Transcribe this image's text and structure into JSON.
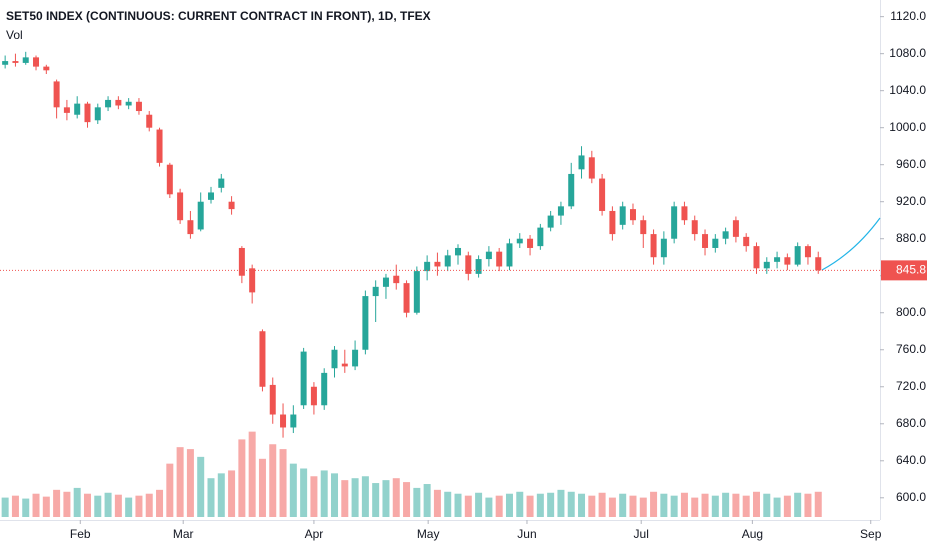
{
  "chart_data": {
    "type": "candlestick",
    "title": "SET50 INDEX (CONTINUOUS: CURRENT CONTRACT IN FRONT), 1D, TFEX",
    "volume_label": "Vol",
    "x": [
      0,
      1,
      2,
      3,
      4,
      5,
      6,
      7,
      8,
      9,
      10,
      11,
      12,
      13,
      14,
      15,
      16,
      17,
      18,
      19,
      20,
      21,
      22,
      23,
      24,
      25,
      26,
      27,
      28,
      29,
      30,
      31,
      32,
      33,
      34,
      35,
      36,
      37,
      38,
      39,
      40,
      41,
      42,
      43,
      44,
      45,
      46,
      47,
      48,
      49,
      50,
      51,
      52,
      53,
      54,
      55,
      56,
      57,
      58,
      59,
      60,
      61,
      62,
      63,
      64,
      65,
      66,
      67,
      68,
      69,
      70,
      71,
      72,
      73,
      74,
      75,
      76,
      77,
      78,
      79
    ],
    "candles": {
      "open": [
        1068,
        1072,
        1070,
        1076,
        1066,
        1050,
        1022,
        1014,
        1026,
        1008,
        1022,
        1030,
        1024,
        1028,
        1014,
        998,
        960,
        930,
        900,
        890,
        922,
        935,
        920,
        870,
        848,
        780,
        722,
        690,
        676,
        700,
        720,
        700,
        740,
        745,
        742,
        760,
        818,
        828,
        840,
        832,
        800,
        845,
        855,
        850,
        862,
        862,
        842,
        858,
        866,
        850,
        875,
        880,
        872,
        892,
        905,
        915,
        955,
        968,
        945,
        910,
        895,
        912,
        900,
        885,
        860,
        880,
        915,
        900,
        885,
        870,
        880,
        900,
        882,
        872,
        848,
        855,
        860,
        852,
        872,
        860
      ],
      "high": [
        1078,
        1080,
        1082,
        1078,
        1068,
        1052,
        1030,
        1034,
        1028,
        1026,
        1034,
        1034,
        1032,
        1032,
        1018,
        1000,
        962,
        934,
        910,
        930,
        936,
        950,
        926,
        872,
        852,
        782,
        730,
        702,
        700,
        762,
        725,
        740,
        764,
        760,
        770,
        824,
        835,
        842,
        852,
        835,
        850,
        862,
        865,
        868,
        874,
        866,
        862,
        872,
        870,
        880,
        886,
        884,
        896,
        910,
        920,
        962,
        980,
        975,
        950,
        915,
        920,
        918,
        905,
        890,
        888,
        920,
        920,
        905,
        890,
        885,
        892,
        904,
        886,
        876,
        860,
        866,
        864,
        876,
        874,
        866
      ],
      "low": [
        1064,
        1066,
        1068,
        1062,
        1058,
        1010,
        1008,
        1010,
        1000,
        1004,
        1018,
        1020,
        1020,
        1014,
        996,
        958,
        924,
        896,
        880,
        888,
        918,
        930,
        906,
        832,
        810,
        715,
        680,
        665,
        670,
        696,
        690,
        695,
        730,
        735,
        738,
        755,
        790,
        815,
        825,
        795,
        798,
        835,
        840,
        845,
        852,
        835,
        838,
        850,
        845,
        846,
        870,
        862,
        868,
        888,
        895,
        912,
        945,
        940,
        905,
        878,
        890,
        895,
        870,
        852,
        852,
        875,
        895,
        878,
        862,
        865,
        874,
        876,
        866,
        842,
        842,
        848,
        846,
        850,
        852,
        842
      ],
      "close": [
        1072,
        1070,
        1076,
        1066,
        1062,
        1022,
        1016,
        1026,
        1006,
        1022,
        1030,
        1024,
        1028,
        1018,
        1000,
        962,
        928,
        900,
        885,
        920,
        930,
        945,
        912,
        840,
        822,
        720,
        690,
        676,
        690,
        758,
        700,
        735,
        760,
        742,
        760,
        818,
        828,
        838,
        832,
        800,
        845,
        855,
        850,
        862,
        870,
        842,
        858,
        866,
        850,
        875,
        880,
        870,
        892,
        905,
        915,
        950,
        970,
        945,
        910,
        885,
        915,
        900,
        885,
        860,
        880,
        915,
        900,
        885,
        870,
        880,
        888,
        882,
        872,
        848,
        855,
        860,
        852,
        872,
        860,
        845.8
      ]
    },
    "volume": [
      20,
      22,
      19,
      24,
      21,
      28,
      26,
      30,
      24,
      22,
      25,
      23,
      20,
      22,
      24,
      28,
      55,
      72,
      70,
      62,
      40,
      45,
      48,
      80,
      88,
      60,
      75,
      70,
      55,
      50,
      42,
      48,
      45,
      38,
      40,
      42,
      35,
      38,
      40,
      36,
      30,
      34,
      28,
      26,
      24,
      22,
      25,
      20,
      22,
      24,
      26,
      22,
      24,
      25,
      28,
      26,
      24,
      22,
      25,
      20,
      24,
      22,
      20,
      26,
      24,
      22,
      25,
      20,
      24,
      22,
      25,
      24,
      22,
      26,
      24,
      20,
      22,
      25,
      24,
      26
    ],
    "volume_ylim": [
      0,
      100
    ],
    "up_color": "#26a69a",
    "down_color": "#ef5350",
    "xlim": [
      -0.5,
      85
    ],
    "xticks": [
      {
        "value": 7.3,
        "label": "Feb"
      },
      {
        "value": 17.3,
        "label": "Mar"
      },
      {
        "value": 30,
        "label": "Apr"
      },
      {
        "value": 41.1,
        "label": "May"
      },
      {
        "value": 50.7,
        "label": "Jun"
      },
      {
        "value": 61.8,
        "label": "Jul"
      },
      {
        "value": 72.6,
        "label": "Aug"
      },
      {
        "value": 84.1,
        "label": "Sep"
      }
    ],
    "ylim": [
      576,
      1138
    ],
    "yticks": [
      {
        "value": 600,
        "label": "600.0"
      },
      {
        "value": 640,
        "label": "640.0"
      },
      {
        "value": 680,
        "label": "680.0"
      },
      {
        "value": 720,
        "label": "720.0"
      },
      {
        "value": 760,
        "label": "760.0"
      },
      {
        "value": 800,
        "label": "800.0"
      },
      {
        "value": 840,
        "label": "840.0"
      },
      {
        "value": 880,
        "label": "880.0"
      },
      {
        "value": 920,
        "label": "920.0"
      },
      {
        "value": 960,
        "label": "960.0"
      },
      {
        "value": 1000,
        "label": "1000.0"
      },
      {
        "value": 1040,
        "label": "1040.0"
      },
      {
        "value": 1080,
        "label": "1080.0"
      },
      {
        "value": 1120,
        "label": "1120.0"
      }
    ]
  }
}
